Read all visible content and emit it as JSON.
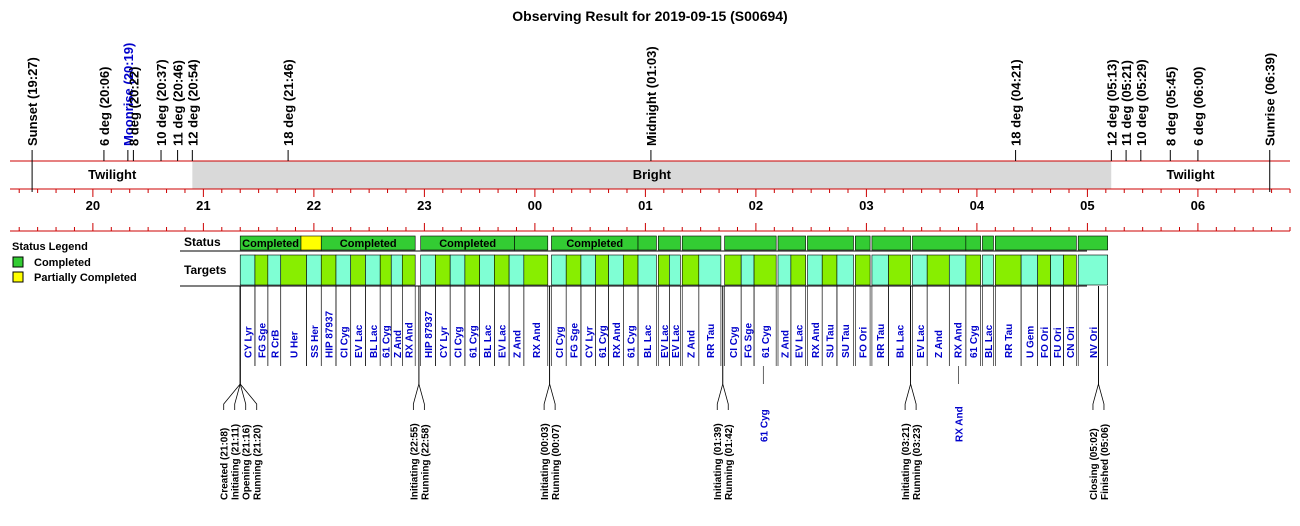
{
  "chart_data": {
    "type": "timeline",
    "title": "Observing Result for 2019-09-15 (S00694)",
    "time_axis": {
      "start": "19:15",
      "end": "06:50",
      "hour_labels": [
        "20",
        "21",
        "22",
        "23",
        "00",
        "01",
        "02",
        "03",
        "04",
        "05",
        "06"
      ]
    },
    "events": [
      {
        "label": "Sunset (19:27)",
        "time": "19:27",
        "color": "#000000"
      },
      {
        "label": "6 deg (20:06)",
        "time": "20:06",
        "color": "#000000"
      },
      {
        "label": "Moonrise (20:19)",
        "time": "20:19",
        "color": "#0000cc"
      },
      {
        "label": "8 deg (20:22)",
        "time": "20:22",
        "color": "#000000"
      },
      {
        "label": "10 deg (20:37)",
        "time": "20:37",
        "color": "#000000"
      },
      {
        "label": "11 deg (20:46)",
        "time": "20:46",
        "color": "#000000"
      },
      {
        "label": "12 deg (20:54)",
        "time": "20:54",
        "color": "#000000"
      },
      {
        "label": "18 deg (21:46)",
        "time": "21:46",
        "color": "#000000"
      },
      {
        "label": "Midnight (01:03)",
        "time": "01:03",
        "color": "#000000"
      },
      {
        "label": "18 deg (04:21)",
        "time": "04:21",
        "color": "#000000"
      },
      {
        "label": "12 deg (05:13)",
        "time": "05:13",
        "color": "#000000"
      },
      {
        "label": "11 deg (05:21)",
        "time": "05:21",
        "color": "#000000"
      },
      {
        "label": "10 deg (05:29)",
        "time": "05:29",
        "color": "#000000"
      },
      {
        "label": "8 deg (05:45)",
        "time": "05:45",
        "color": "#000000"
      },
      {
        "label": "6 deg (06:00)",
        "time": "06:00",
        "color": "#000000"
      },
      {
        "label": "Sunrise (06:39)",
        "time": "06:39",
        "color": "#000000"
      }
    ],
    "sky_phases": [
      {
        "label": "Twilight",
        "start": "19:27",
        "end": "20:54",
        "fill": "#ffffff"
      },
      {
        "label": "Bright",
        "start": "20:54",
        "end": "05:13",
        "fill": "#d9d9d9"
      },
      {
        "label": "Twilight",
        "start": "05:13",
        "end": "06:39",
        "fill": "#ffffff"
      }
    ],
    "legend": {
      "title": "Status Legend",
      "items": [
        {
          "label": "Completed",
          "color": "#33cc33"
        },
        {
          "label": "Partially Completed",
          "color": "#ffff00"
        }
      ]
    },
    "row_labels": {
      "status": "Status",
      "targets": "Targets"
    },
    "status_blocks": [
      {
        "start": "21:20",
        "end": "21:53",
        "status": "completed",
        "label": "Completed"
      },
      {
        "start": "21:53",
        "end": "22:04",
        "status": "partial",
        "label": ""
      },
      {
        "start": "22:04",
        "end": "22:55",
        "status": "completed",
        "label": "Completed"
      },
      {
        "start": "22:58",
        "end": "23:49",
        "status": "completed",
        "label": "Completed"
      },
      {
        "start": "23:49",
        "end": "00:07",
        "status": "completed",
        "label": ""
      },
      {
        "start": "00:09",
        "end": "00:56",
        "status": "completed",
        "label": "Completed"
      },
      {
        "start": "00:56",
        "end": "01:06",
        "status": "completed",
        "label": ""
      },
      {
        "start": "01:07",
        "end": "01:19",
        "status": "completed",
        "label": ""
      },
      {
        "start": "01:20",
        "end": "01:41",
        "status": "completed",
        "label": ""
      },
      {
        "start": "01:43",
        "end": "02:11",
        "status": "completed",
        "label": ""
      },
      {
        "start": "02:12",
        "end": "02:27",
        "status": "completed",
        "label": ""
      },
      {
        "start": "02:28",
        "end": "02:53",
        "status": "completed",
        "label": ""
      },
      {
        "start": "02:54",
        "end": "03:02",
        "status": "completed",
        "label": ""
      },
      {
        "start": "03:03",
        "end": "03:24",
        "status": "completed",
        "label": ""
      },
      {
        "start": "03:25",
        "end": "03:54",
        "status": "completed",
        "label": ""
      },
      {
        "start": "03:54",
        "end": "04:02",
        "status": "completed",
        "label": ""
      },
      {
        "start": "04:03",
        "end": "04:09",
        "status": "completed",
        "label": ""
      },
      {
        "start": "04:10",
        "end": "04:54",
        "status": "completed",
        "label": ""
      },
      {
        "start": "04:55",
        "end": "05:11",
        "status": "completed",
        "label": ""
      }
    ],
    "targets": [
      {
        "name": "CY Lyr",
        "start": "21:20",
        "end": "21:28",
        "fill": "#7fffd4"
      },
      {
        "name": "FG Sge",
        "start": "21:28",
        "end": "21:35",
        "fill": "#88ee00"
      },
      {
        "name": "R CrB",
        "start": "21:35",
        "end": "21:42",
        "fill": "#7fffd4"
      },
      {
        "name": "U Her",
        "start": "21:42",
        "end": "21:56",
        "fill": "#88ee00"
      },
      {
        "name": "SS Her",
        "start": "21:56",
        "end": "22:04",
        "fill": "#7fffd4"
      },
      {
        "name": "HIP 87937",
        "start": "22:04",
        "end": "22:12",
        "fill": "#88ee00"
      },
      {
        "name": "CI Cyg",
        "start": "22:12",
        "end": "22:20",
        "fill": "#7fffd4"
      },
      {
        "name": "EV Lac",
        "start": "22:20",
        "end": "22:28",
        "fill": "#88ee00"
      },
      {
        "name": "BL Lac",
        "start": "22:28",
        "end": "22:36",
        "fill": "#7fffd4"
      },
      {
        "name": "61 Cyg",
        "start": "22:36",
        "end": "22:42",
        "fill": "#88ee00"
      },
      {
        "name": "Z And",
        "start": "22:42",
        "end": "22:48",
        "fill": "#7fffd4"
      },
      {
        "name": "RX And",
        "start": "22:48",
        "end": "22:55",
        "fill": "#88ee00"
      },
      {
        "name": "HIP 87937",
        "start": "22:58",
        "end": "23:06",
        "fill": "#7fffd4"
      },
      {
        "name": "CY Lyr",
        "start": "23:06",
        "end": "23:14",
        "fill": "#88ee00"
      },
      {
        "name": "CI Cyg",
        "start": "23:14",
        "end": "23:22",
        "fill": "#7fffd4"
      },
      {
        "name": "61 Cyg",
        "start": "23:22",
        "end": "23:30",
        "fill": "#88ee00"
      },
      {
        "name": "BL Lac",
        "start": "23:30",
        "end": "23:38",
        "fill": "#7fffd4"
      },
      {
        "name": "EV Lac",
        "start": "23:38",
        "end": "23:46",
        "fill": "#88ee00"
      },
      {
        "name": "Z And",
        "start": "23:46",
        "end": "23:54",
        "fill": "#7fffd4"
      },
      {
        "name": "RX And",
        "start": "23:54",
        "end": "00:07",
        "fill": "#88ee00"
      },
      {
        "name": "CI Cyg",
        "start": "00:09",
        "end": "00:17",
        "fill": "#7fffd4"
      },
      {
        "name": "FG Sge",
        "start": "00:17",
        "end": "00:25",
        "fill": "#88ee00"
      },
      {
        "name": "CY Lyr",
        "start": "00:25",
        "end": "00:33",
        "fill": "#7fffd4"
      },
      {
        "name": "61 Cyg",
        "start": "00:33",
        "end": "00:40",
        "fill": "#88ee00"
      },
      {
        "name": "RX And",
        "start": "00:40",
        "end": "00:48",
        "fill": "#7fffd4"
      },
      {
        "name": "61 Cyg",
        "start": "00:48",
        "end": "00:56",
        "fill": "#88ee00"
      },
      {
        "name": "BL Lac",
        "start": "00:56",
        "end": "01:06",
        "fill": "#7fffd4"
      },
      {
        "name": "EV Lac",
        "start": "01:07",
        "end": "01:13",
        "fill": "#88ee00"
      },
      {
        "name": "EV Lac",
        "start": "01:13",
        "end": "01:19",
        "fill": "#7fffd4"
      },
      {
        "name": "Z And",
        "start": "01:20",
        "end": "01:29",
        "fill": "#88ee00"
      },
      {
        "name": "RR Tau",
        "start": "01:29",
        "end": "01:41",
        "fill": "#7fffd4"
      },
      {
        "name": "CI Cyg",
        "start": "01:43",
        "end": "01:52",
        "fill": "#88ee00"
      },
      {
        "name": "FG Sge",
        "start": "01:52",
        "end": "01:59",
        "fill": "#7fffd4"
      },
      {
        "name": "61 Cyg",
        "start": "01:59",
        "end": "02:11",
        "fill": "#88ee00"
      },
      {
        "name": "Z And",
        "start": "02:12",
        "end": "02:19",
        "fill": "#7fffd4"
      },
      {
        "name": "EV Lac",
        "start": "02:19",
        "end": "02:27",
        "fill": "#88ee00"
      },
      {
        "name": "RX And",
        "start": "02:28",
        "end": "02:36",
        "fill": "#7fffd4"
      },
      {
        "name": "SU Tau",
        "start": "02:36",
        "end": "02:44",
        "fill": "#88ee00"
      },
      {
        "name": "SU Tau",
        "start": "02:44",
        "end": "02:53",
        "fill": "#7fffd4"
      },
      {
        "name": "FO Ori",
        "start": "02:54",
        "end": "03:02",
        "fill": "#88ee00"
      },
      {
        "name": "RR Tau",
        "start": "03:03",
        "end": "03:12",
        "fill": "#7fffd4"
      },
      {
        "name": "BL Lac",
        "start": "03:12",
        "end": "03:24",
        "fill": "#88ee00"
      },
      {
        "name": "EV Lac",
        "start": "03:25",
        "end": "03:33",
        "fill": "#7fffd4"
      },
      {
        "name": "Z And",
        "start": "03:33",
        "end": "03:45",
        "fill": "#88ee00"
      },
      {
        "name": "RX And",
        "start": "03:45",
        "end": "03:54",
        "fill": "#7fffd4"
      },
      {
        "name": "61 Cyg",
        "start": "03:54",
        "end": "04:02",
        "fill": "#88ee00"
      },
      {
        "name": "BL Lac",
        "start": "04:03",
        "end": "04:09",
        "fill": "#7fffd4"
      },
      {
        "name": "RR Tau",
        "start": "04:10",
        "end": "04:24",
        "fill": "#88ee00"
      },
      {
        "name": "U Gem",
        "start": "04:24",
        "end": "04:33",
        "fill": "#7fffd4"
      },
      {
        "name": "FO Ori",
        "start": "04:33",
        "end": "04:40",
        "fill": "#88ee00"
      },
      {
        "name": "FU Ori",
        "start": "04:40",
        "end": "04:47",
        "fill": "#7fffd4"
      },
      {
        "name": "CN Ori",
        "start": "04:47",
        "end": "04:54",
        "fill": "#88ee00"
      },
      {
        "name": "NV Ori",
        "start": "04:55",
        "end": "05:11",
        "fill": "#7fffd4"
      }
    ],
    "extra_target_labels": [
      {
        "name": "61 Cyg",
        "time": "02:04",
        "color": "#0000cc"
      },
      {
        "name": "RX And",
        "time": "03:50",
        "color": "#0000cc"
      }
    ],
    "log_groups": [
      {
        "anchor": "21:20",
        "entries": [
          "Created (21:08)",
          "Initiating (21:11)",
          "Opening (21:16)",
          "Running (21:20)"
        ]
      },
      {
        "anchor": "22:57",
        "entries": [
          "Initiating (22:55)",
          "Running (22:58)"
        ]
      },
      {
        "anchor": "00:08",
        "entries": [
          "Initiating (00:03)",
          "Running (00:07)"
        ]
      },
      {
        "anchor": "01:42",
        "entries": [
          "Initiating (01:39)",
          "Running (01:42)"
        ]
      },
      {
        "anchor": "03:24",
        "entries": [
          "Initiating (03:21)",
          "Running (03:23)"
        ]
      },
      {
        "anchor": "05:06",
        "entries": [
          "Closing (05:02)",
          "Finished (05:06)"
        ]
      }
    ]
  }
}
